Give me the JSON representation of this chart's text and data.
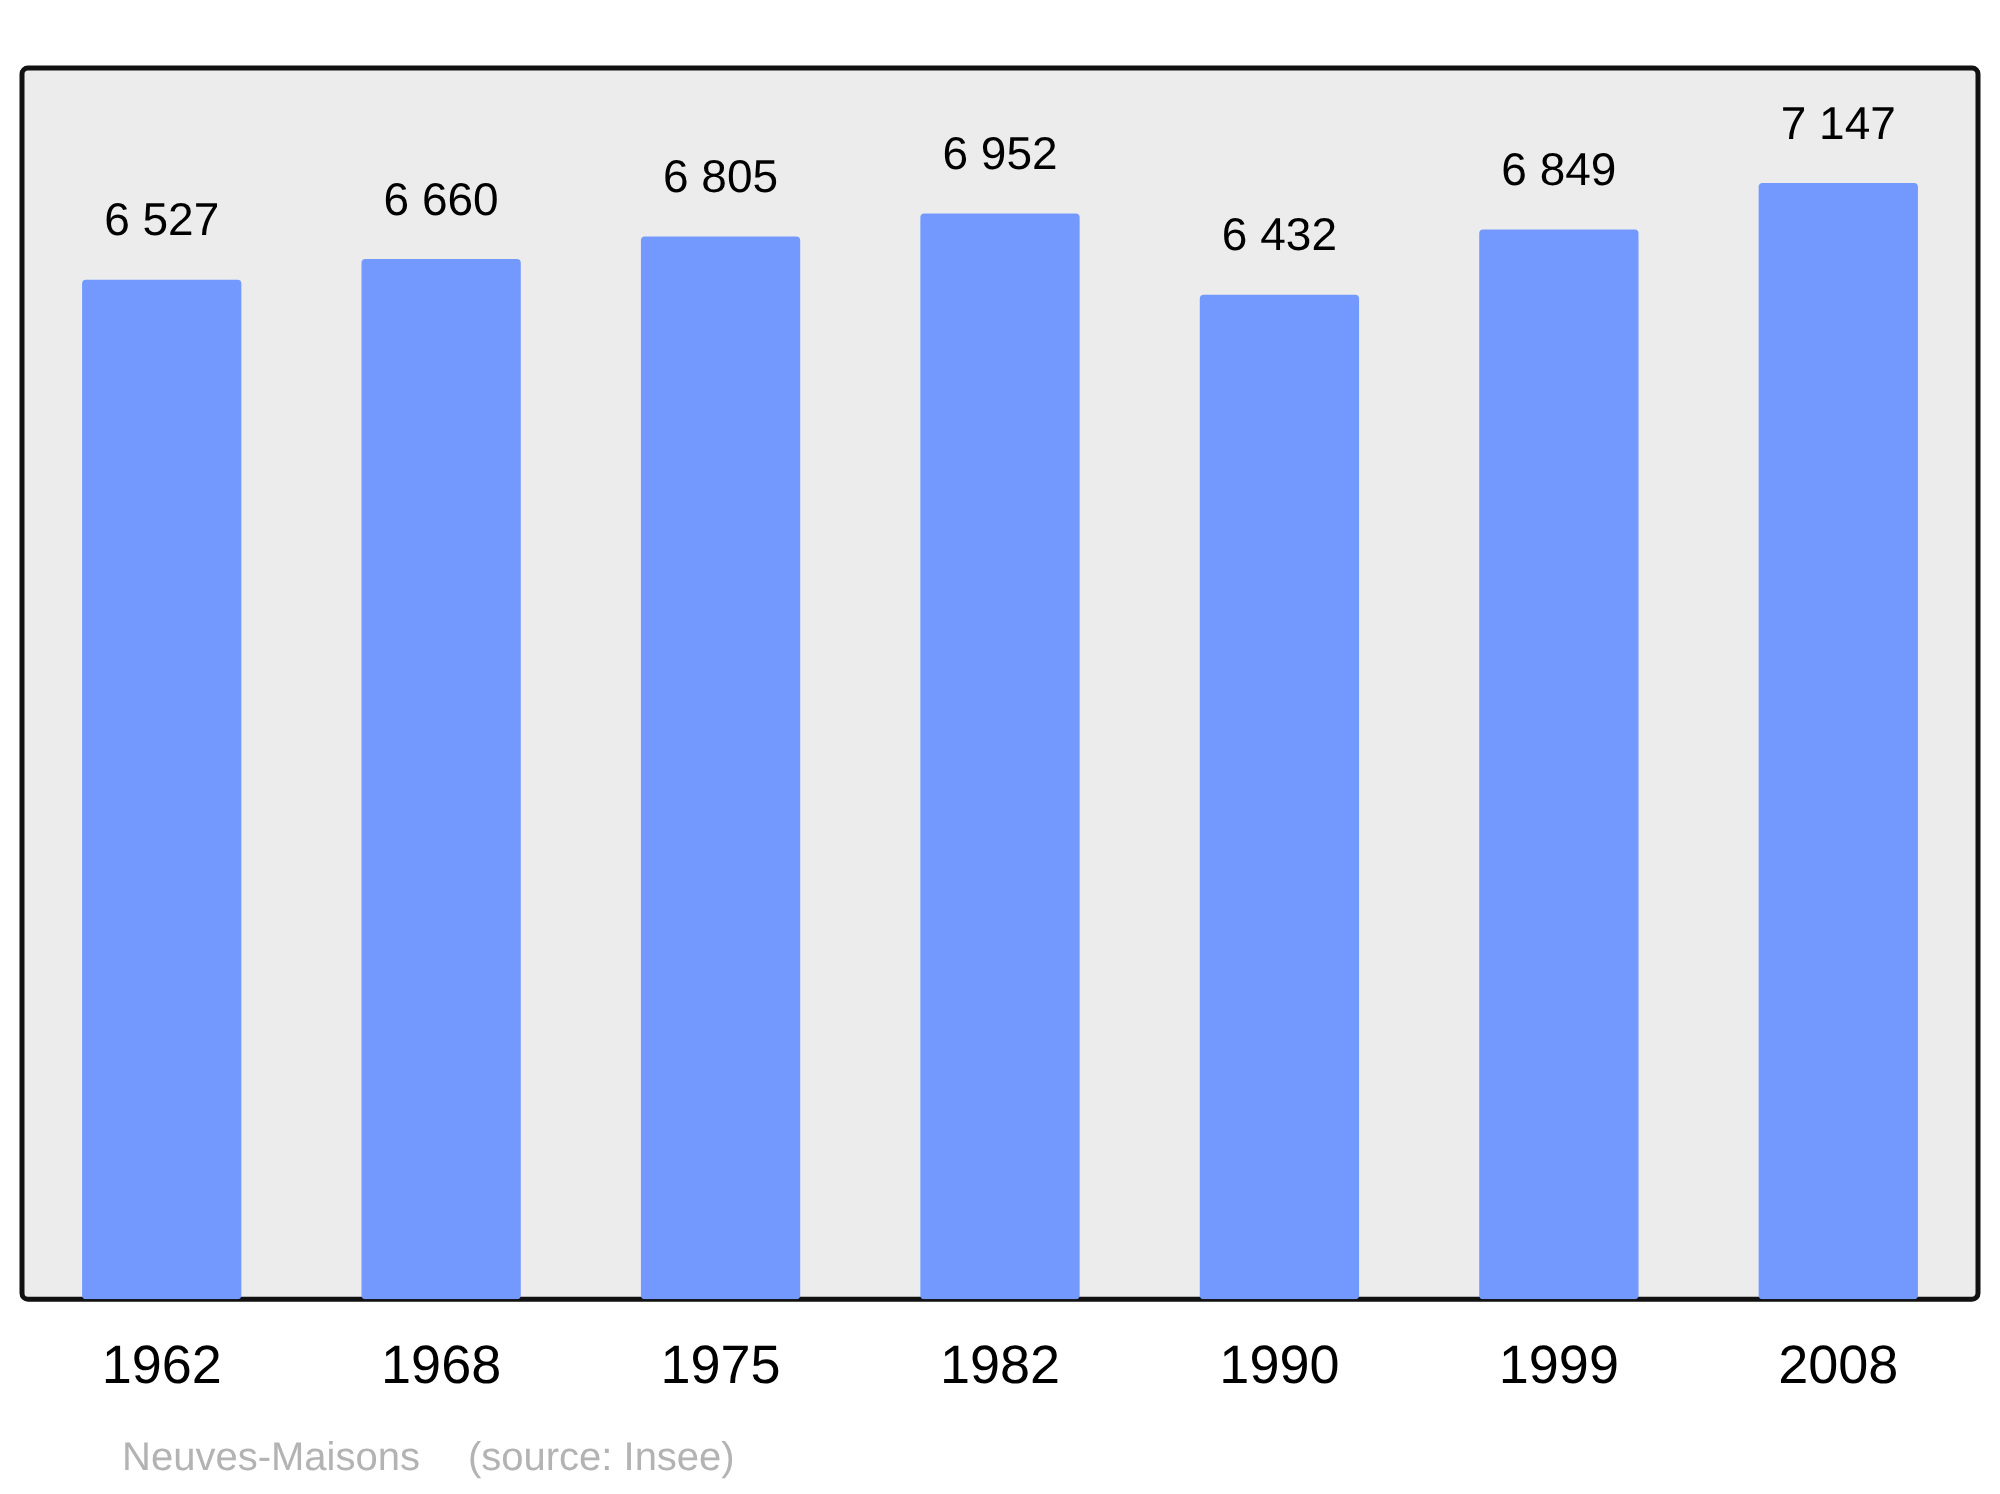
{
  "chart_data": {
    "type": "bar",
    "categories": [
      "1962",
      "1968",
      "1975",
      "1982",
      "1990",
      "1999",
      "2008"
    ],
    "values": [
      6527,
      6660,
      6805,
      6952,
      6432,
      6849,
      7147
    ],
    "value_labels": [
      "6 527",
      "6 660",
      "6 805",
      "6 952",
      "6 432",
      "6 849",
      "7 147"
    ],
    "color": "#7399ff",
    "grid": false,
    "legend": false,
    "annotations": [
      "Neuves-Maisons",
      "(source: Insee)"
    ]
  }
}
